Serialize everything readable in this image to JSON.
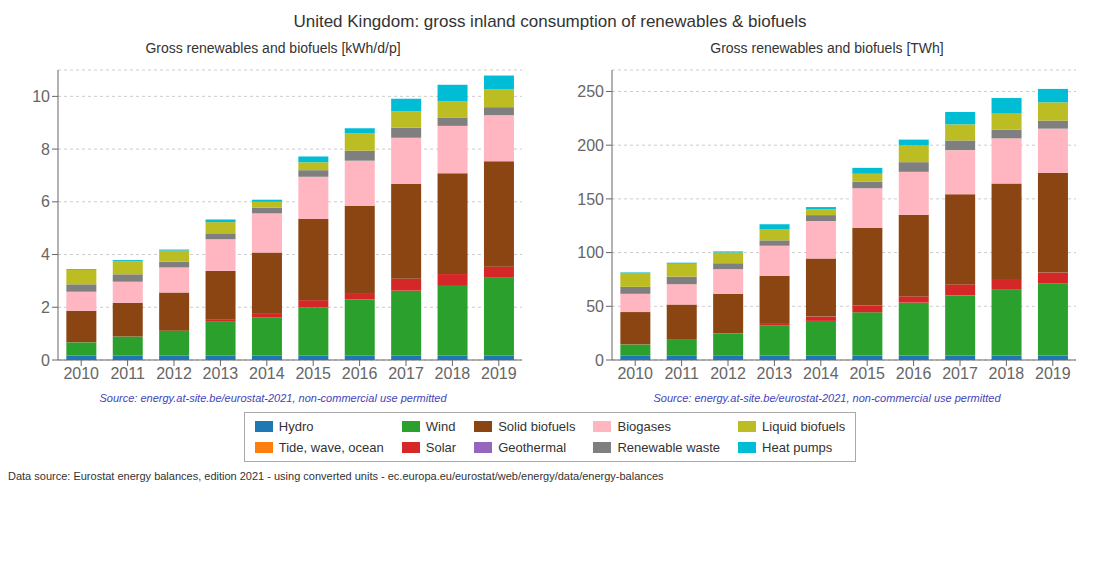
{
  "title": "United Kingdom: gross inland consumption of renewables & biofuels",
  "annotations": [
    "Data source: Eurostat energy balances, edition 2021 - using converted units - ec.europa.eu/eurostat/web/energy/data/energy-balances"
  ],
  "legend": "bottom",
  "chart_data": [
    {
      "type": "bar",
      "stacked": true,
      "grid": true,
      "title": "Gross renewables and biofuels [kWh/d/p]",
      "annotations": [
        "Source: energy.at-site.be/eurostat-2021, non-commercial use permitted"
      ],
      "categories": [
        "2010",
        "2011",
        "2012",
        "2013",
        "2014",
        "2015",
        "2016",
        "2017",
        "2018",
        "2019"
      ],
      "ylim": [
        0,
        11
      ],
      "yticks": [
        0,
        2,
        4,
        6,
        8,
        10
      ],
      "series": [
        {
          "name": "Hydro",
          "color": "#1f77b4",
          "values": [
            0.18,
            0.18,
            0.18,
            0.18,
            0.18,
            0.18,
            0.18,
            0.18,
            0.18,
            0.18
          ]
        },
        {
          "name": "Tide, wave, ocean",
          "color": "#ff7f0e",
          "values": [
            0.01,
            0.01,
            0.01,
            0.01,
            0.01,
            0.01,
            0.01,
            0.01,
            0.01,
            0.01
          ]
        },
        {
          "name": "Wind",
          "color": "#2ca02c",
          "values": [
            0.48,
            0.7,
            0.92,
            1.26,
            1.42,
            1.8,
            2.1,
            2.44,
            2.62,
            2.93
          ]
        },
        {
          "name": "Solar",
          "color": "#d62728",
          "values": [
            0.0,
            0.0,
            0.0,
            0.08,
            0.17,
            0.28,
            0.25,
            0.45,
            0.45,
            0.42
          ]
        },
        {
          "name": "Solid biofuels",
          "color": "#8B4513",
          "values": [
            1.2,
            1.28,
            1.45,
            1.85,
            2.3,
            3.08,
            3.3,
            3.6,
            3.82,
            4.0
          ]
        },
        {
          "name": "Geothermal",
          "color": "#9467bd",
          "values": [
            0.0,
            0.0,
            0.0,
            0.0,
            0.0,
            0.0,
            0.0,
            0.0,
            0.0,
            0.0
          ]
        },
        {
          "name": "Biogases",
          "color": "#ffb6c1",
          "values": [
            0.72,
            0.8,
            0.95,
            1.2,
            1.48,
            1.6,
            1.72,
            1.75,
            1.8,
            1.75
          ]
        },
        {
          "name": "Renewable waste",
          "color": "#7f7f7f",
          "values": [
            0.28,
            0.28,
            0.22,
            0.2,
            0.22,
            0.25,
            0.38,
            0.38,
            0.32,
            0.3
          ]
        },
        {
          "name": "Liquid biofuels",
          "color": "#bcbd22",
          "values": [
            0.55,
            0.5,
            0.42,
            0.45,
            0.22,
            0.3,
            0.65,
            0.62,
            0.62,
            0.68
          ]
        },
        {
          "name": "Heat pumps",
          "color": "#00bcd4",
          "values": [
            0.03,
            0.04,
            0.04,
            0.1,
            0.08,
            0.22,
            0.2,
            0.48,
            0.62,
            0.52
          ]
        }
      ]
    },
    {
      "type": "bar",
      "stacked": true,
      "grid": true,
      "title": "Gross renewables and biofuels [TWh]",
      "annotations": [
        "Source: energy.at-site.be/eurostat-2021, non-commercial use permitted"
      ],
      "categories": [
        "2010",
        "2011",
        "2012",
        "2013",
        "2014",
        "2015",
        "2016",
        "2017",
        "2018",
        "2019"
      ],
      "ylim": [
        0,
        270
      ],
      "yticks": [
        0,
        50,
        100,
        150,
        200,
        250
      ],
      "series": [
        {
          "name": "Hydro",
          "color": "#1f77b4",
          "values": [
            4.4,
            4.4,
            4.4,
            4.3,
            4.3,
            4.3,
            4.3,
            4.3,
            4.3,
            4.3
          ]
        },
        {
          "name": "Tide, wave, ocean",
          "color": "#ff7f0e",
          "values": [
            0.1,
            0.1,
            0.1,
            0.1,
            0.1,
            0.1,
            0.1,
            0.1,
            0.1,
            0.1
          ]
        },
        {
          "name": "Wind",
          "color": "#2ca02c",
          "values": [
            10.0,
            15.0,
            20.0,
            28.0,
            32.0,
            40.0,
            49.0,
            56.0,
            61.0,
            67.0
          ]
        },
        {
          "name": "Solar",
          "color": "#d62728",
          "values": [
            0.1,
            0.1,
            0.1,
            2.0,
            4.0,
            6.5,
            5.8,
            10.0,
            10.0,
            10.0
          ]
        },
        {
          "name": "Solid biofuels",
          "color": "#8B4513",
          "values": [
            30.0,
            32.0,
            37.0,
            44.0,
            54.0,
            72.0,
            76.0,
            84.0,
            89.0,
            93.0
          ]
        },
        {
          "name": "Geothermal",
          "color": "#9467bd",
          "values": [
            0.0,
            0.0,
            0.0,
            0.0,
            0.0,
            0.0,
            0.0,
            0.0,
            0.0,
            0.0
          ]
        },
        {
          "name": "Biogases",
          "color": "#ffb6c1",
          "values": [
            17.0,
            19.0,
            23.0,
            28.0,
            35.0,
            37.0,
            40.0,
            41.0,
            42.0,
            41.0
          ]
        },
        {
          "name": "Renewable waste",
          "color": "#7f7f7f",
          "values": [
            6.5,
            7.0,
            5.5,
            5.0,
            5.5,
            6.0,
            9.0,
            9.0,
            8.0,
            7.5
          ]
        },
        {
          "name": "Liquid biofuels",
          "color": "#bcbd22",
          "values": [
            13.0,
            12.0,
            10.0,
            10.5,
            5.5,
            7.5,
            15.5,
            15.0,
            15.0,
            17.0
          ]
        },
        {
          "name": "Heat pumps",
          "color": "#00bcd4",
          "values": [
            0.5,
            1.0,
            1.0,
            4.5,
            2.0,
            5.5,
            5.5,
            11.5,
            14.5,
            12.5
          ]
        }
      ]
    }
  ]
}
